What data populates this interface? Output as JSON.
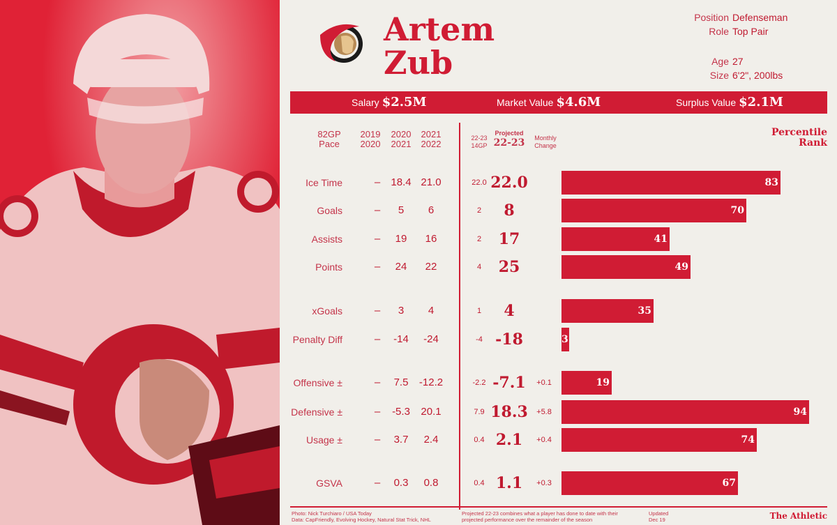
{
  "player": {
    "first_name": "Artem",
    "last_name": "Zub",
    "position_label": "Position",
    "position": "Defenseman",
    "role_label": "Role",
    "role": "Top Pair",
    "age_label": "Age",
    "age": "27",
    "size_label": "Size",
    "size": "6'2\", 200lbs"
  },
  "salary": {
    "salary_label": "Salary",
    "salary": "$2.5M",
    "market_label": "Market Value",
    "market": "$4.6M",
    "surplus_label": "Surplus Value",
    "surplus": "$2.1M"
  },
  "headers": {
    "pace_1": "82GP",
    "pace_2": "Pace",
    "s1_1": "2019",
    "s1_2": "2020",
    "s2_1": "2020",
    "s2_2": "2021",
    "s3_1": "2021",
    "s3_2": "2022",
    "cur_1": "22-23",
    "cur_2": "14GP",
    "proj_1": "Projected",
    "proj_2": "22-23",
    "mon_1": "Monthly",
    "mon_2": "Change",
    "pct_1": "Percentile",
    "pct_2": "Rank"
  },
  "chart_data": {
    "type": "bar",
    "orientation": "horizontal",
    "categories": [
      "Ice Time",
      "Goals",
      "Assists",
      "Points",
      "xGoals",
      "Penalty Diff",
      "Offensive ±",
      "Defensive ±",
      "Usage ±",
      "GSVA"
    ],
    "series": [
      {
        "name": "Percentile Rank",
        "values": [
          83,
          70,
          41,
          49,
          35,
          3,
          19,
          94,
          74,
          67
        ]
      }
    ],
    "xlim": [
      0,
      100
    ],
    "table": [
      {
        "s1": "–",
        "s2": "18.4",
        "s3": "21.0",
        "cur": "22.0",
        "proj": "22.0",
        "mon": ""
      },
      {
        "s1": "–",
        "s2": "5",
        "s3": "6",
        "cur": "2",
        "proj": "8",
        "mon": ""
      },
      {
        "s1": "–",
        "s2": "19",
        "s3": "16",
        "cur": "2",
        "proj": "17",
        "mon": ""
      },
      {
        "s1": "–",
        "s2": "24",
        "s3": "22",
        "cur": "4",
        "proj": "25",
        "mon": ""
      },
      {
        "s1": "–",
        "s2": "3",
        "s3": "4",
        "cur": "1",
        "proj": "4",
        "mon": ""
      },
      {
        "s1": "–",
        "s2": "-14",
        "s3": "-24",
        "cur": "-4",
        "proj": "-18",
        "mon": ""
      },
      {
        "s1": "–",
        "s2": "7.5",
        "s3": "-12.2",
        "cur": "-2.2",
        "proj": "-7.1",
        "mon": "+0.1"
      },
      {
        "s1": "–",
        "s2": "-5.3",
        "s3": "20.1",
        "cur": "7.9",
        "proj": "18.3",
        "mon": "+5.8"
      },
      {
        "s1": "–",
        "s2": "3.7",
        "s3": "2.4",
        "cur": "0.4",
        "proj": "2.1",
        "mon": "+0.4"
      },
      {
        "s1": "–",
        "s2": "0.3",
        "s3": "0.8",
        "cur": "0.4",
        "proj": "1.1",
        "mon": "+0.3"
      }
    ],
    "bar_color": "#d01c34"
  },
  "footer": {
    "credit_1": "Photo: Nick Turchiaro / USA Today",
    "credit_2": "Data: CapFriendly, Evolving Hockey, Natural Stat Trick, NHL",
    "note_1": "Projected 22-23 combines what a player has done to date with their",
    "note_2": "projected performance over the remainder of the season",
    "updated_1": "Updated",
    "updated_2": "Dec 19",
    "brand": "The Athletic"
  },
  "colors": {
    "accent": "#d01c34",
    "background": "#f1efea",
    "photo_bg": "#e02236"
  }
}
